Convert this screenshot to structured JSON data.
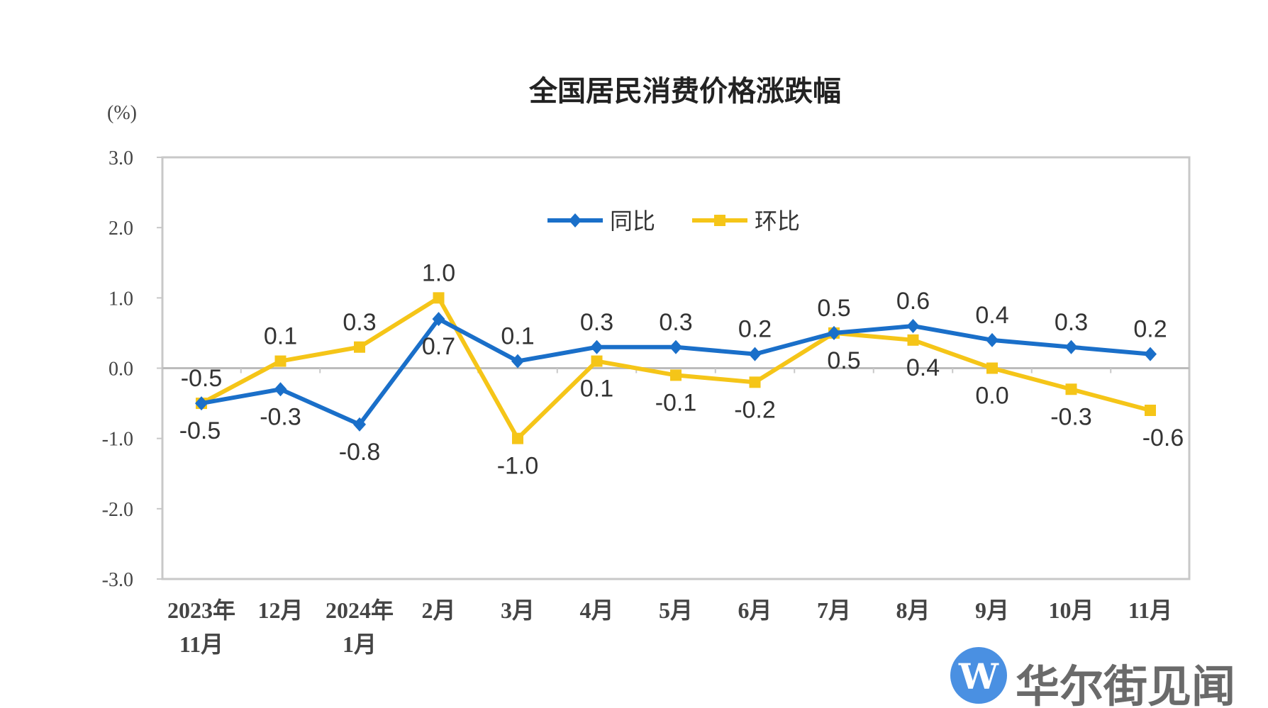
{
  "chart_data": {
    "type": "line",
    "title": "全国居民消费价格涨跌幅",
    "ylabel": "(%)",
    "xlabel": "",
    "ylim": [
      -3.0,
      3.0
    ],
    "yticks": [
      "3.0",
      "2.0",
      "1.0",
      "0.0",
      "-1.0",
      "-2.0",
      "-3.0"
    ],
    "ytick_values": [
      3,
      2,
      1,
      0,
      -1,
      -2,
      -3
    ],
    "categories": [
      [
        "2023年",
        "11月"
      ],
      [
        "12月"
      ],
      [
        "2024年",
        "1月"
      ],
      [
        "2月"
      ],
      [
        "3月"
      ],
      [
        "4月"
      ],
      [
        "5月"
      ],
      [
        "6月"
      ],
      [
        "7月"
      ],
      [
        "8月"
      ],
      [
        "9月"
      ],
      [
        "10月"
      ],
      [
        "11月"
      ]
    ],
    "legend_position": "top-center",
    "grid": false,
    "series": [
      {
        "name": "同比",
        "color": "#1a6fc9",
        "marker": "diamond",
        "values": [
          -0.5,
          -0.3,
          -0.8,
          0.7,
          0.1,
          0.3,
          0.3,
          0.2,
          0.5,
          0.6,
          0.4,
          0.3,
          0.2
        ],
        "labels": [
          "-0.5",
          "-0.3",
          "-0.8",
          "0.7",
          "0.1",
          "0.3",
          "0.3",
          "0.2",
          "0.5",
          "0.6",
          "0.4",
          "0.3",
          "0.2"
        ],
        "label_side": [
          "below",
          "below",
          "below",
          "below",
          "above",
          "above",
          "above",
          "above",
          "above",
          "above",
          "above",
          "above",
          "above"
        ]
      },
      {
        "name": "环比",
        "color": "#f5c518",
        "marker": "square",
        "values": [
          -0.5,
          0.1,
          0.3,
          1.0,
          -1.0,
          0.1,
          -0.1,
          -0.2,
          0.5,
          0.4,
          0.0,
          -0.3,
          -0.6
        ],
        "labels": [
          "-0.5",
          "0.1",
          "0.3",
          "1.0",
          "-1.0",
          "0.1",
          "-0.1",
          "-0.2",
          "0.5",
          "0.4",
          "0.0",
          "-0.3",
          "-0.6"
        ],
        "label_side": [
          "above",
          "above",
          "above",
          "above",
          "below",
          "below",
          "below",
          "below",
          "below",
          "below",
          "below",
          "below",
          "below"
        ]
      }
    ]
  },
  "watermark": {
    "text": "华尔街见闻",
    "logo_letter": "W",
    "color": "#4a90e2"
  }
}
